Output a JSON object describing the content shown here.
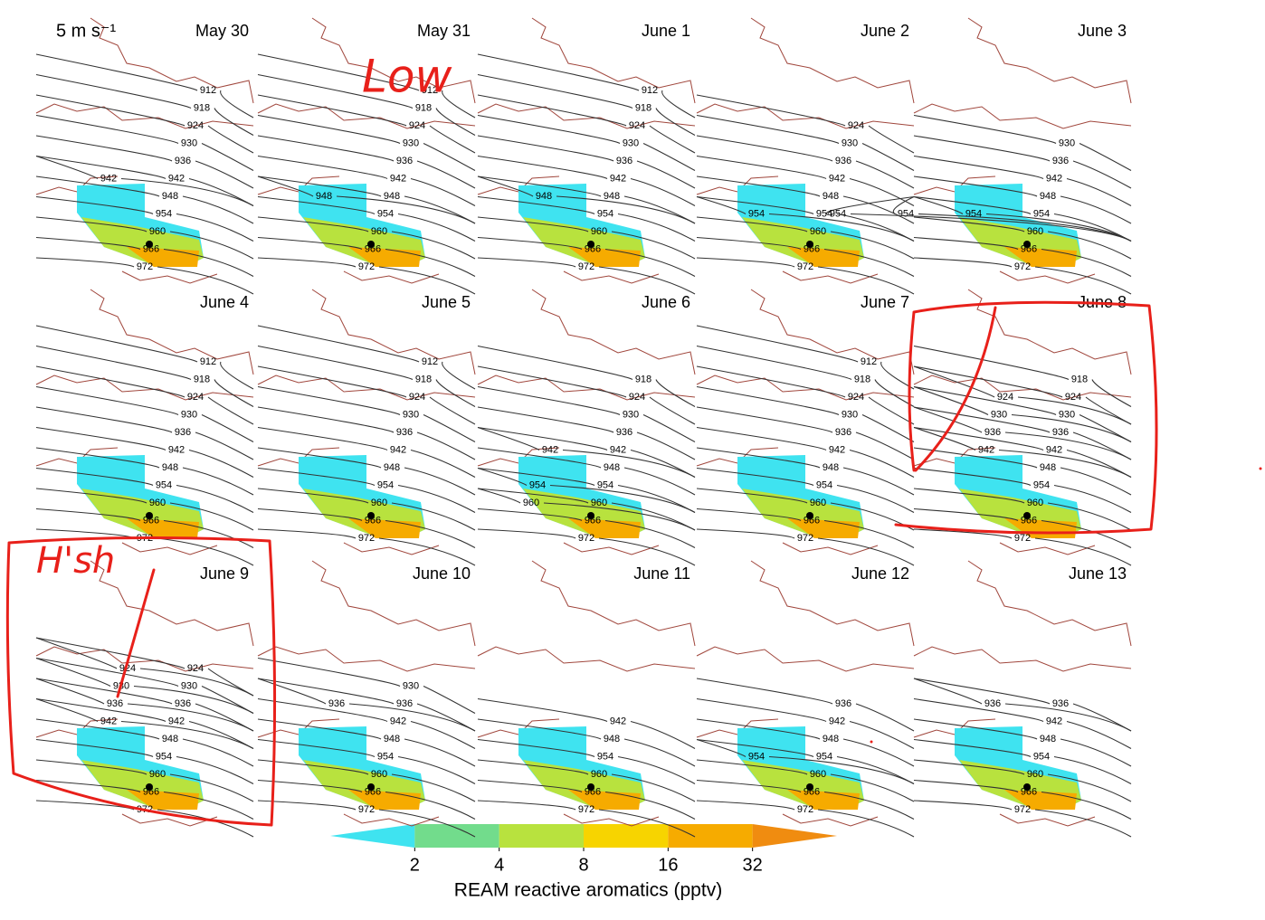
{
  "scale_label": "5 m s⁻¹",
  "panels": [
    {
      "title": "May 30",
      "contour_labels": [
        942,
        912,
        918,
        924,
        930,
        942,
        936,
        948,
        954,
        960,
        966,
        972
      ]
    },
    {
      "title": "May 31",
      "contour_labels": [
        948,
        912,
        918,
        924,
        930,
        936,
        942,
        948,
        954,
        960,
        966,
        972
      ]
    },
    {
      "title": "June 1",
      "contour_labels": [
        948,
        912,
        918,
        924,
        930,
        936,
        942,
        948,
        954,
        960,
        966,
        972
      ]
    },
    {
      "title": "June 2",
      "contour_labels": [
        954,
        924,
        930,
        936,
        942,
        948,
        954,
        960,
        966,
        972
      ]
    },
    {
      "title": "June 3",
      "contour_labels": [
        954,
        954,
        948,
        942,
        936,
        930,
        954,
        954,
        960,
        966,
        972
      ]
    },
    {
      "title": "June 4",
      "contour_labels": [
        912,
        918,
        924,
        930,
        936,
        942,
        948,
        954,
        960,
        966,
        972
      ]
    },
    {
      "title": "June 5",
      "contour_labels": [
        912,
        918,
        924,
        930,
        936,
        942,
        948,
        954,
        960,
        966,
        972
      ]
    },
    {
      "title": "June 6",
      "contour_labels": [
        942,
        954,
        948,
        918,
        924,
        930,
        936,
        942,
        954,
        960,
        960,
        966,
        972
      ]
    },
    {
      "title": "June 7",
      "contour_labels": [
        912,
        918,
        924,
        930,
        936,
        942,
        948,
        954,
        960,
        966,
        972
      ]
    },
    {
      "title": "June 8",
      "contour_labels": [
        918,
        924,
        930,
        936,
        942,
        924,
        930,
        936,
        942,
        948,
        954,
        960,
        966,
        972
      ]
    },
    {
      "title": "June 9",
      "contour_labels": [
        924,
        930,
        936,
        942,
        948,
        954,
        930,
        924,
        936,
        942,
        960,
        966,
        972
      ]
    },
    {
      "title": "June 10",
      "contour_labels": [
        936,
        930,
        942,
        948,
        954,
        960,
        936,
        966,
        972
      ]
    },
    {
      "title": "June 11",
      "contour_labels": [
        942,
        948,
        954,
        960,
        966,
        972
      ]
    },
    {
      "title": "June 12",
      "contour_labels": [
        936,
        942,
        948,
        954,
        954,
        960,
        966,
        972
      ]
    },
    {
      "title": "June 13",
      "contour_labels": [
        936,
        936,
        942,
        948,
        954,
        960,
        966,
        972
      ]
    }
  ],
  "colorbar": {
    "ticks": [
      2,
      4,
      8,
      16,
      32
    ],
    "colors": [
      "#3fe3f0",
      "#72dc8c",
      "#b8e23e",
      "#f7d400",
      "#f6ab00",
      "#f08c10"
    ],
    "label": "REAM reactive aromatics (pptv)"
  },
  "annotations": {
    "low": "Low",
    "high": "H'sh"
  }
}
